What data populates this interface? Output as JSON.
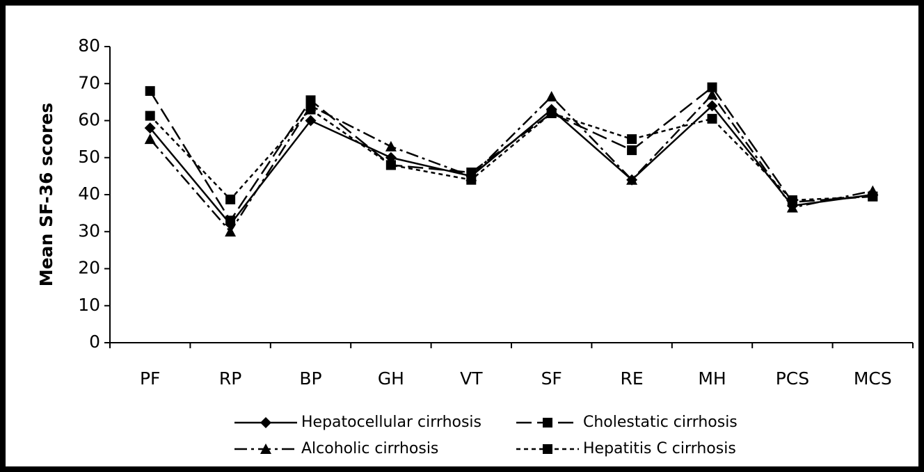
{
  "chart_data": {
    "type": "line",
    "y_label": "Mean SF-36 scores",
    "categories": [
      "PF",
      "RP",
      "BP",
      "GH",
      "VT",
      "SF",
      "RE",
      "MH",
      "PCS",
      "MCS"
    ],
    "series": [
      {
        "name": "Hepatocellular cirrhosis",
        "color": "#000000",
        "marker": "diamond",
        "dash": "solid",
        "values": [
          58,
          32,
          60,
          50,
          45,
          63,
          44,
          64,
          37,
          40
        ]
      },
      {
        "name": "Cholestatic cirrhosis",
        "color": "#000000",
        "marker": "square",
        "dash": "long-dash",
        "values": [
          68,
          33,
          65.5,
          48,
          46,
          62,
          52,
          69,
          38,
          39.5
        ]
      },
      {
        "name": "Alcoholic cirrhosis",
        "color": "#000000",
        "marker": "triangle",
        "dash": "dash-dot",
        "values": [
          55,
          30,
          64,
          53,
          45,
          66.5,
          44,
          67,
          36.5,
          41
        ]
      },
      {
        "name": "Hepatitis C cirrhosis",
        "color": "#000000",
        "marker": "square",
        "dash": "short-dash",
        "values": [
          61.3,
          38.7,
          63,
          48,
          44,
          62,
          55,
          60.5,
          38.5,
          39.5
        ]
      }
    ],
    "ylim": [
      0,
      80
    ],
    "yticks": [
      0,
      10,
      20,
      30,
      40,
      50,
      60,
      70,
      80
    ],
    "grid": false,
    "legend": "bottom"
  }
}
